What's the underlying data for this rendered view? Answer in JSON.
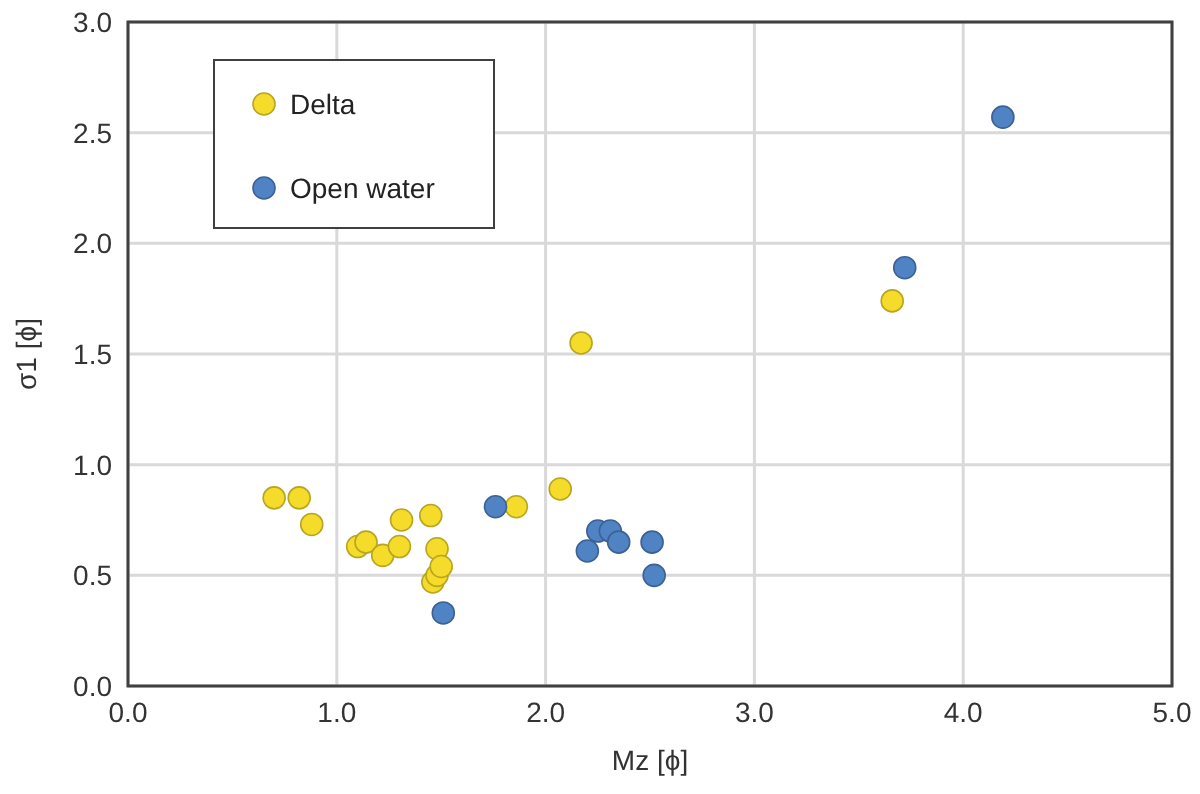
{
  "chart_data": {
    "type": "scatter",
    "xlabel": "Mz [ϕ]",
    "ylabel": "σ1 [ϕ]",
    "xlim": [
      0,
      5
    ],
    "xticks": [
      {
        "value": 0,
        "label": "0.0"
      },
      {
        "value": 1,
        "label": "1.0"
      },
      {
        "value": 2,
        "label": "2.0"
      },
      {
        "value": 3,
        "label": "3.0"
      },
      {
        "value": 4,
        "label": "4.0"
      },
      {
        "value": 5,
        "label": "5.0"
      }
    ],
    "ylim": [
      0,
      3
    ],
    "yticks": [
      {
        "value": 0,
        "label": "0.0"
      },
      {
        "value": 0.5,
        "label": "0.5"
      },
      {
        "value": 1,
        "label": "1.0"
      },
      {
        "value": 1.5,
        "label": "1.5"
      },
      {
        "value": 2,
        "label": "2.0"
      },
      {
        "value": 2.5,
        "label": "2.5"
      },
      {
        "value": 3,
        "label": "3.0"
      }
    ],
    "grid": true,
    "legend": "top left",
    "marker": "circle",
    "series": [
      {
        "name": "Delta",
        "color": "#f5dc2a",
        "x": [
          0.7,
          0.82,
          0.88,
          1.1,
          1.14,
          1.22,
          1.3,
          1.31,
          1.45,
          1.46,
          1.48,
          1.48,
          1.5,
          1.86,
          2.07,
          2.17,
          3.66
        ],
        "values": [
          0.85,
          0.85,
          0.73,
          0.63,
          0.65,
          0.59,
          0.63,
          0.75,
          0.77,
          0.47,
          0.62,
          0.5,
          0.54,
          0.81,
          0.89,
          1.55,
          1.74
        ]
      },
      {
        "name": "Open water",
        "color": "#5083c4",
        "x": [
          1.51,
          1.76,
          2.2,
          2.25,
          2.31,
          2.35,
          2.51,
          2.52,
          3.72,
          4.19
        ],
        "values": [
          0.33,
          0.81,
          0.61,
          0.7,
          0.7,
          0.65,
          0.65,
          0.5,
          1.89,
          2.57
        ]
      }
    ]
  }
}
